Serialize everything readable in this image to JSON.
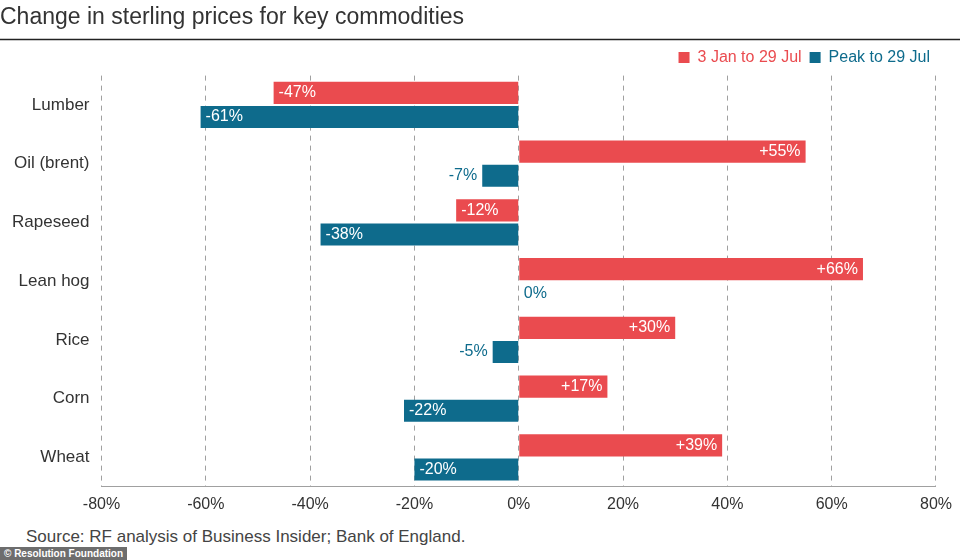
{
  "chart_data": {
    "type": "bar",
    "orientation": "horizontal",
    "title": "Change in sterling prices for key commodities",
    "annotations": [
      "Source: RF analysis of Business Insider; Bank of England.",
      "© Resolution Foundation"
    ],
    "categories": [
      "Lumber",
      "Oil (brent)",
      "Rapeseed",
      "Lean hog",
      "Rice",
      "Corn",
      "Wheat"
    ],
    "series": [
      {
        "name": "3 Jan to 29 Jul",
        "color": "#ea4b4f",
        "values": [
          -47,
          55,
          -12,
          66,
          30,
          17,
          39
        ],
        "value_labels": [
          "-47%",
          "+55%",
          "-12%",
          "+66%",
          "+30%",
          "+17%",
          "+39%"
        ]
      },
      {
        "name": "Peak to 29 Jul",
        "color": "#0e6b8c",
        "values": [
          -61,
          -7,
          -38,
          0,
          -5,
          -22,
          -20
        ],
        "value_labels": [
          "-61%",
          "-7%",
          "-38%",
          "0%",
          "-5%",
          "-22%",
          "-20%"
        ]
      }
    ],
    "xlim": [
      -80,
      80
    ],
    "xticks": [
      {
        "value": -80,
        "label": "-80%"
      },
      {
        "value": -60,
        "label": "-60%"
      },
      {
        "value": -40,
        "label": "-40%"
      },
      {
        "value": -20,
        "label": "-20%"
      },
      {
        "value": 0,
        "label": "0%"
      },
      {
        "value": 20,
        "label": "20%"
      },
      {
        "value": 40,
        "label": "40%"
      },
      {
        "value": 60,
        "label": "60%"
      },
      {
        "value": 80,
        "label": "80%"
      }
    ],
    "grid": true,
    "legend": "top-right",
    "data_labels": true
  }
}
